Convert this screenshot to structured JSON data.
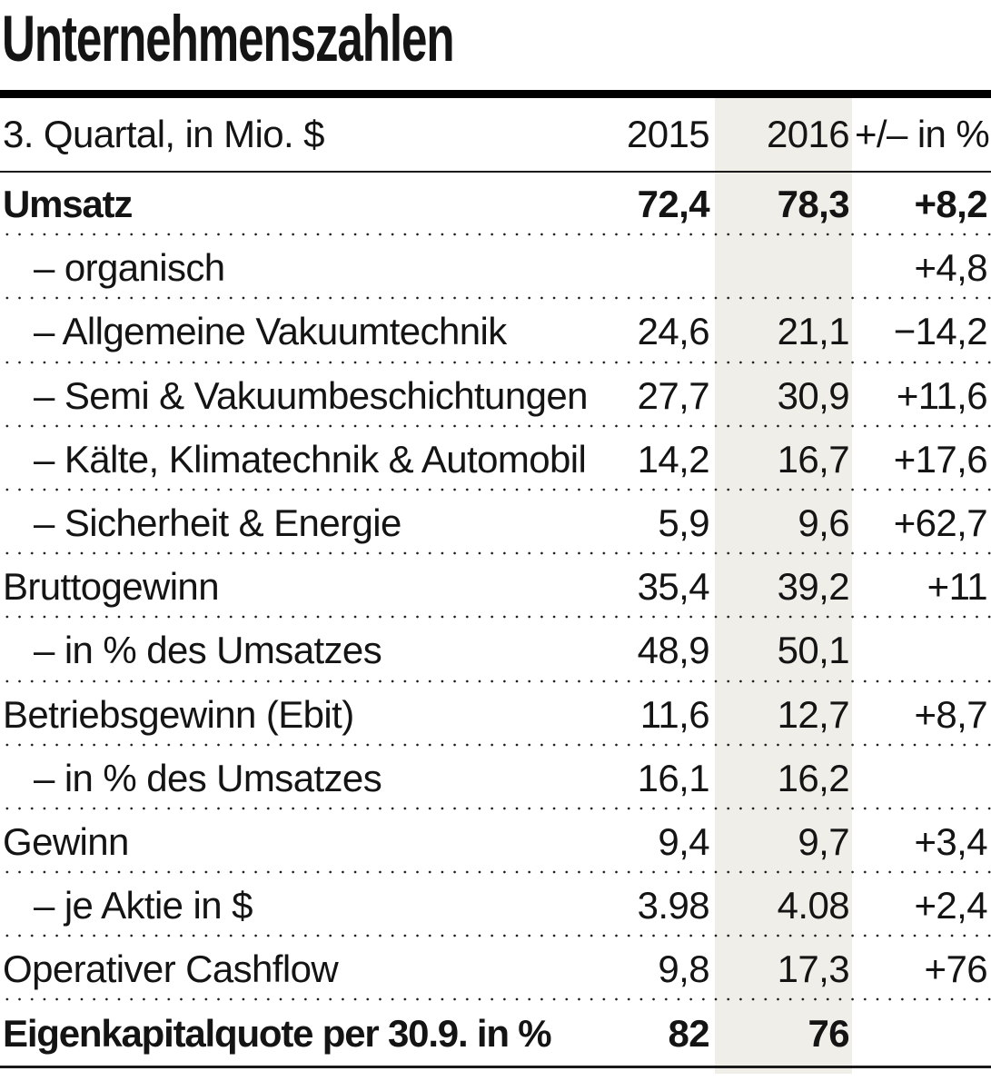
{
  "title": "Unternehmenszahlen",
  "styles": {
    "highlight_column_color": "#efeee8",
    "text_color": "#141414"
  },
  "chart_data": {
    "type": "table",
    "title": "Unternehmenszahlen",
    "subtitle": "3. Quartal, in Mio. $",
    "columns": [
      "3. Quartal, in Mio. $",
      "2015",
      "2016",
      "+/– in %"
    ],
    "highlighted_column": "2016",
    "rows": [
      {
        "label": "Umsatz",
        "v2015": "72,4",
        "v2016": "78,3",
        "delta": "+8,2",
        "bold": true,
        "indent": false
      },
      {
        "label": "– organisch",
        "v2015": "",
        "v2016": "",
        "delta": "+4,8",
        "bold": false,
        "indent": true
      },
      {
        "label": "– Allgemeine Vakuumtechnik",
        "v2015": "24,6",
        "v2016": "21,1",
        "delta": "−14,2",
        "bold": false,
        "indent": true
      },
      {
        "label": "– Semi & Vakuumbeschichtungen",
        "v2015": "27,7",
        "v2016": "30,9",
        "delta": "+11,6",
        "bold": false,
        "indent": true
      },
      {
        "label": "– Kälte, Klimatechnik & Automobil",
        "v2015": "14,2",
        "v2016": "16,7",
        "delta": "+17,6",
        "bold": false,
        "indent": true
      },
      {
        "label": "– Sicherheit & Energie",
        "v2015": "5,9",
        "v2016": "9,6",
        "delta": "+62,7",
        "bold": false,
        "indent": true
      },
      {
        "label": "Bruttogewinn",
        "v2015": "35,4",
        "v2016": "39,2",
        "delta": "+11",
        "bold": false,
        "indent": false
      },
      {
        "label": "– in % des Umsatzes",
        "v2015": "48,9",
        "v2016": "50,1",
        "delta": "",
        "bold": false,
        "indent": true
      },
      {
        "label": "Betriebsgewinn (Ebit)",
        "v2015": "11,6",
        "v2016": "12,7",
        "delta": "+8,7",
        "bold": false,
        "indent": false
      },
      {
        "label": "– in % des Umsatzes",
        "v2015": "16,1",
        "v2016": "16,2",
        "delta": "",
        "bold": false,
        "indent": true
      },
      {
        "label": "Gewinn",
        "v2015": "9,4",
        "v2016": "9,7",
        "delta": "+3,4",
        "bold": false,
        "indent": false
      },
      {
        "label": "– je Aktie in $",
        "v2015": "3.98",
        "v2016": "4.08",
        "delta": "+2,4",
        "bold": false,
        "indent": true
      },
      {
        "label": "Operativer Cashflow",
        "v2015": "9,8",
        "v2016": "17,3",
        "delta": "+76",
        "bold": false,
        "indent": false
      },
      {
        "label": "Eigenkapitalquote per 30.9. in %",
        "v2015": "82",
        "v2016": "76",
        "delta": "",
        "bold": true,
        "indent": false
      }
    ]
  }
}
